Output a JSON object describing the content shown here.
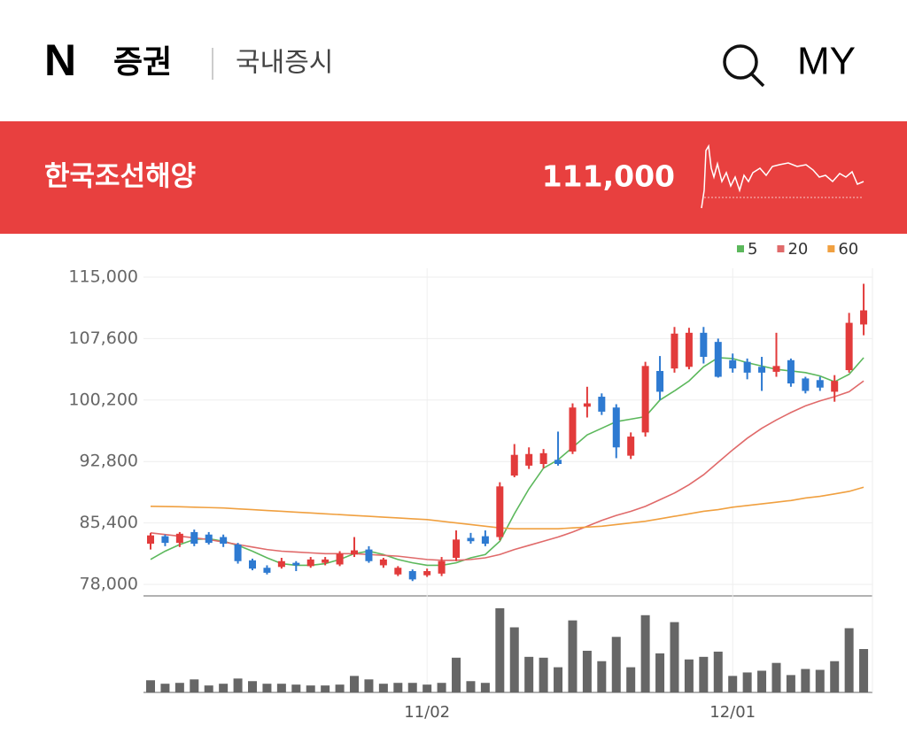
{
  "header": {
    "logo": "N",
    "service": "증권",
    "section": "국내증시",
    "my": "MY"
  },
  "stock": {
    "name": "한국조선해양",
    "price": "111,000"
  },
  "chart_data": {
    "type": "candlestick",
    "categories": [
      null,
      null,
      null,
      null,
      null,
      null,
      null,
      null,
      null,
      null,
      null,
      null,
      null,
      null,
      null,
      null,
      null,
      null,
      null,
      "11/02",
      null,
      null,
      null,
      null,
      null,
      null,
      null,
      null,
      null,
      null,
      null,
      null,
      null,
      null,
      null,
      null,
      null,
      null,
      null,
      null,
      "12/01",
      null,
      null,
      null,
      null,
      null,
      null,
      null,
      null,
      null
    ],
    "open": [
      82900,
      83800,
      83000,
      84300,
      84000,
      83700,
      82800,
      80900,
      80000,
      80100,
      80600,
      80200,
      80600,
      80400,
      81600,
      82200,
      80300,
      79200,
      79600,
      79100,
      79300,
      81200,
      83600,
      83800,
      83700,
      91100,
      92300,
      92500,
      93000,
      94000,
      99400,
      100600,
      99300,
      93500,
      96300,
      103700,
      104000,
      104200,
      108300,
      107200,
      105000,
      104800,
      104200,
      103600,
      105000,
      102800,
      102600,
      101200,
      103800,
      109300
    ],
    "high": [
      84200,
      84000,
      84300,
      84600,
      84300,
      84000,
      83000,
      81100,
      80300,
      81200,
      80800,
      81300,
      81300,
      82000,
      83700,
      82600,
      81200,
      80200,
      79800,
      79900,
      81300,
      84500,
      84200,
      84500,
      90300,
      94900,
      94500,
      94300,
      96400,
      99800,
      101800,
      101000,
      99700,
      96300,
      104800,
      105500,
      109000,
      108900,
      109000,
      107600,
      105800,
      105200,
      105400,
      108300,
      105200,
      103000,
      103000,
      103200,
      110700,
      114200
    ],
    "low": [
      82200,
      82600,
      82500,
      82600,
      82800,
      82500,
      80500,
      79700,
      79200,
      79900,
      79600,
      80000,
      80300,
      80200,
      81300,
      80600,
      80000,
      79000,
      78400,
      78900,
      79000,
      80800,
      82900,
      82600,
      83300,
      90900,
      91900,
      92000,
      92300,
      93700,
      98100,
      98400,
      93200,
      93100,
      95800,
      100200,
      103500,
      103900,
      104600,
      102900,
      103500,
      102700,
      101300,
      103000,
      101800,
      101000,
      101300,
      100000,
      103500,
      108000
    ],
    "close": [
      83900,
      83000,
      84100,
      82900,
      83000,
      82900,
      80800,
      79900,
      79400,
      80800,
      80300,
      81000,
      81000,
      81700,
      82100,
      80800,
      81000,
      80000,
      78600,
      79600,
      80800,
      83400,
      83200,
      82900,
      89800,
      93600,
      93700,
      93800,
      92500,
      99300,
      99800,
      98800,
      94500,
      95800,
      104300,
      101200,
      108200,
      108300,
      105400,
      103000,
      104000,
      103500,
      103500,
      104300,
      102200,
      101300,
      101700,
      102500,
      109500,
      111000
    ],
    "up_color": "#e23b3b",
    "down_color": "#2e7ad1",
    "series": [
      {
        "name": "5",
        "color": "#5cb85c",
        "values": [
          81000,
          82000,
          82800,
          83400,
          83500,
          83200,
          82700,
          82000,
          81200,
          80500,
          80300,
          80300,
          80500,
          81000,
          81700,
          82000,
          81600,
          81000,
          80600,
          80300,
          80300,
          80600,
          81200,
          81600,
          83200,
          86500,
          89500,
          92000,
          93000,
          94500,
          96000,
          96800,
          97600,
          97900,
          98200,
          100200,
          101300,
          102500,
          104200,
          105300,
          105200,
          104700,
          104300,
          103900,
          103700,
          103500,
          103100,
          102400,
          103300,
          105300
        ]
      },
      {
        "name": "20",
        "color": "#e06a6a",
        "values": [
          84200,
          84000,
          83800,
          83600,
          83400,
          83100,
          82800,
          82500,
          82200,
          82000,
          81900,
          81800,
          81700,
          81700,
          81700,
          81600,
          81500,
          81400,
          81200,
          81000,
          80900,
          80900,
          81000,
          81200,
          81600,
          82200,
          82700,
          83200,
          83700,
          84300,
          85000,
          85700,
          86300,
          86800,
          87400,
          88200,
          89000,
          90000,
          91200,
          92700,
          94200,
          95600,
          96800,
          97800,
          98700,
          99500,
          100100,
          100600,
          101200,
          102500
        ]
      },
      {
        "name": "60",
        "color": "#f0a040",
        "values": [
          87400,
          87380,
          87350,
          87300,
          87250,
          87200,
          87100,
          87000,
          86900,
          86800,
          86700,
          86600,
          86500,
          86400,
          86300,
          86200,
          86100,
          86000,
          85900,
          85800,
          85600,
          85400,
          85200,
          85000,
          84800,
          84700,
          84700,
          84700,
          84700,
          84800,
          84900,
          85000,
          85200,
          85400,
          85600,
          85900,
          86200,
          86500,
          86800,
          87000,
          87300,
          87500,
          87700,
          87900,
          88100,
          88400,
          88600,
          88900,
          89200,
          89700
        ]
      }
    ],
    "ylim": [
      78000,
      115000
    ],
    "yticks": [
      {
        "value": 78000,
        "label": "78,000"
      },
      {
        "value": 85400,
        "label": "85,400"
      },
      {
        "value": 92800,
        "label": "92,800"
      },
      {
        "value": 100200,
        "label": "100,200"
      },
      {
        "value": 107600,
        "label": "107,600"
      },
      {
        "value": 115000,
        "label": "115,000"
      }
    ],
    "grid": true,
    "volume": {
      "color": "#666666",
      "ylim": [
        0,
        100
      ],
      "values": [
        14,
        10,
        11,
        15,
        8,
        10,
        16,
        13,
        10,
        10,
        9,
        8,
        8,
        9,
        19,
        15,
        10,
        11,
        11,
        9,
        11,
        40,
        13,
        11,
        97,
        75,
        41,
        40,
        29,
        83,
        48,
        36,
        64,
        29,
        89,
        45,
        81,
        38,
        41,
        47,
        19,
        23,
        25,
        34,
        20,
        27,
        26,
        36,
        74,
        50
      ]
    }
  }
}
